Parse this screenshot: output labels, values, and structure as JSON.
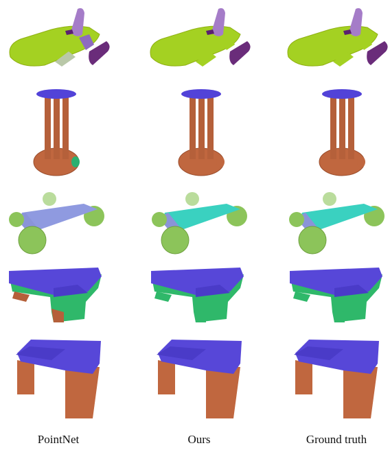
{
  "labels": [
    "PointNet",
    "Ours",
    "Ground truth"
  ]
}
